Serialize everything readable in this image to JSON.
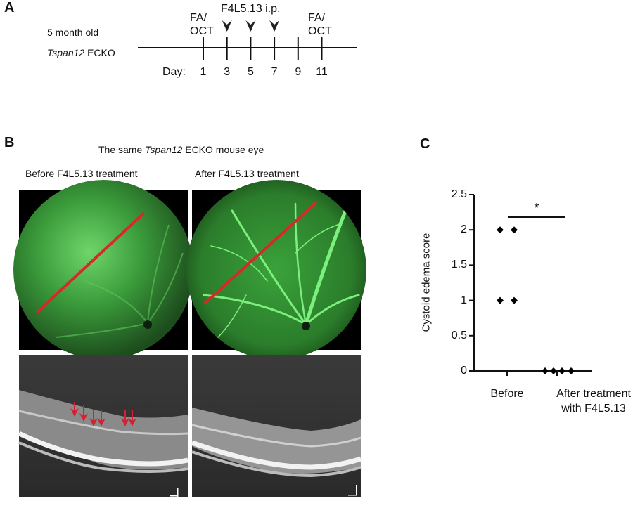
{
  "panels": {
    "a": {
      "letter": "A",
      "subject_line1": "5 month old",
      "subject_gene": "Tspan12",
      "subject_suffix": " ECKO",
      "injection_label": "F4L5.13 i.p.",
      "imaging_label_line1": "FA/",
      "imaging_label_line2": "OCT",
      "day_label": "Day:",
      "days": [
        "1",
        "3",
        "5",
        "7",
        "9",
        "11"
      ],
      "imaging_days": [
        "1",
        "11"
      ],
      "injection_days": [
        "3",
        "5",
        "7"
      ]
    },
    "b": {
      "letter": "B",
      "title_prefix": "The same ",
      "title_gene": "Tspan12",
      "title_suffix": " ECKO mouse eye",
      "before_label": "Before F4L5.13 treatment",
      "after_label": "After F4L5.13 treatment",
      "scan_line_color": "#d42a2a",
      "arrow_color": "#d42030",
      "fundus_color": "#3cc83c"
    },
    "c": {
      "letter": "C",
      "significance": "*"
    }
  },
  "chart_data": {
    "type": "scatter",
    "ylabel": "Cystoid edema score",
    "ylim": [
      0,
      2.5
    ],
    "yticks": [
      "0",
      "0.5",
      "1",
      "1.5",
      "2",
      "2.5"
    ],
    "categories": [
      "Before",
      "After treatment with F4L5.13"
    ],
    "category_lines": [
      [
        "Before"
      ],
      [
        "After treatment",
        "with F4L5.13"
      ]
    ],
    "series": [
      {
        "category": "Before",
        "values": [
          2,
          2,
          1,
          1
        ]
      },
      {
        "category": "After treatment with F4L5.13",
        "values": [
          0,
          0,
          0,
          0
        ]
      }
    ],
    "marker": "diamond",
    "significance": {
      "between": [
        "Before",
        "After treatment with F4L5.13"
      ],
      "label": "*"
    }
  }
}
